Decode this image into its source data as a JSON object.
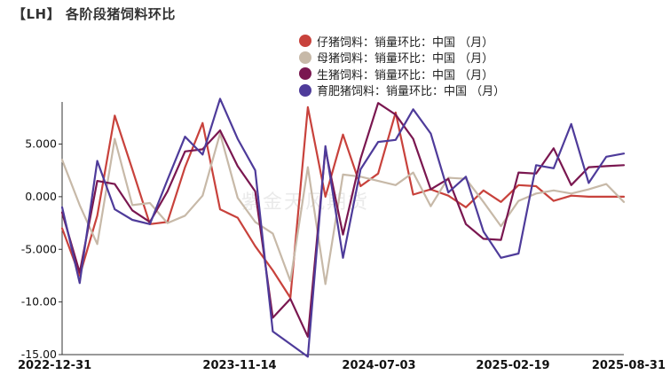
{
  "chart_title": "【LH】 各阶段猪饲料环比",
  "watermark": "紫金天风期货",
  "colors": {
    "series_1": "#c8423c",
    "series_2": "#c7b9a8",
    "series_3": "#7a1750",
    "series_4": "#4e3b9a",
    "axis": "#333333"
  },
  "chart_data": {
    "type": "line",
    "title": "【LH】 各阶段猪饲料环比",
    "xlabel": "",
    "ylabel": "",
    "ylim": [
      -15,
      9
    ],
    "yticks": [
      5,
      0,
      -5,
      -10,
      -15
    ],
    "ytick_labels": [
      "5.000",
      "0.000",
      "-5.000",
      "-10.00",
      "-15.00"
    ],
    "xtick_labels": [
      "2022-12-31",
      "2023-11-14",
      "2024-07-03",
      "2025-02-19",
      "2025-08-31"
    ],
    "legend_position": "top-right",
    "x": [
      "2022-12",
      "2023-01",
      "2023-02",
      "2023-03",
      "2023-04",
      "2023-05",
      "2023-06",
      "2023-07",
      "2023-08",
      "2023-09",
      "2023-10",
      "2023-11",
      "2023-12",
      "2024-01",
      "2024-02",
      "2024-03",
      "2024-04",
      "2024-05",
      "2024-06",
      "2024-07",
      "2024-08",
      "2024-09",
      "2024-10",
      "2024-11",
      "2024-12",
      "2025-01",
      "2025-02",
      "2025-03",
      "2025-04",
      "2025-05",
      "2025-06",
      "2025-07",
      "2025-08"
    ],
    "series": [
      {
        "name": "仔猪饲料：销量环比：中国 （月）",
        "values": [
          -3.0,
          -7.5,
          -1.8,
          7.7,
          2.6,
          -2.6,
          -2.4,
          2.8,
          7.0,
          -1.2,
          -2.0,
          -4.7,
          -7.0,
          -9.6,
          8.5,
          0.0,
          5.9,
          1.0,
          2.2,
          8.0,
          0.2,
          0.7,
          0.1,
          -1.0,
          0.6,
          -0.5,
          1.1,
          1.0,
          -0.4,
          0.1,
          0.0,
          0.0,
          0.0
        ]
      },
      {
        "name": "母猪饲料：销量环比：中国 （月）",
        "values": [
          3.5,
          -0.8,
          -4.5,
          5.5,
          -0.8,
          -0.6,
          -2.5,
          -1.8,
          0.1,
          6.0,
          -0.1,
          -2.4,
          -3.5,
          -8.0,
          2.8,
          -8.3,
          2.1,
          1.9,
          1.5,
          1.1,
          2.3,
          -0.9,
          1.8,
          1.7,
          -0.5,
          -2.8,
          -0.4,
          0.3,
          0.6,
          0.3,
          0.7,
          1.2,
          -0.5
        ]
      },
      {
        "name": "生猪饲料：销量环比：中国 （月）",
        "values": [
          -1.5,
          -7.2,
          1.5,
          1.2,
          -1.3,
          -2.4,
          0.5,
          4.3,
          4.5,
          6.3,
          2.9,
          0.5,
          -11.5,
          -9.7,
          -13.3,
          4.5,
          -3.6,
          3.6,
          8.9,
          7.8,
          5.5,
          0.7,
          1.7,
          -2.6,
          -4.0,
          -4.1,
          2.3,
          2.2,
          4.6,
          1.1,
          2.8,
          2.9,
          3.0
        ]
      },
      {
        "name": "育肥猪饲料：销量环比：中国 （月）",
        "values": [
          -1.0,
          -8.2,
          3.4,
          -1.2,
          -2.2,
          -2.6,
          1.6,
          5.7,
          4.0,
          9.3,
          5.5,
          2.5,
          -12.8,
          -14.0,
          -15.2,
          4.8,
          -5.8,
          2.6,
          5.2,
          5.4,
          8.3,
          6.0,
          0.4,
          1.9,
          -3.3,
          -5.8,
          -5.4,
          3.0,
          2.7,
          6.9,
          1.3,
          3.8,
          4.1
        ]
      }
    ]
  }
}
